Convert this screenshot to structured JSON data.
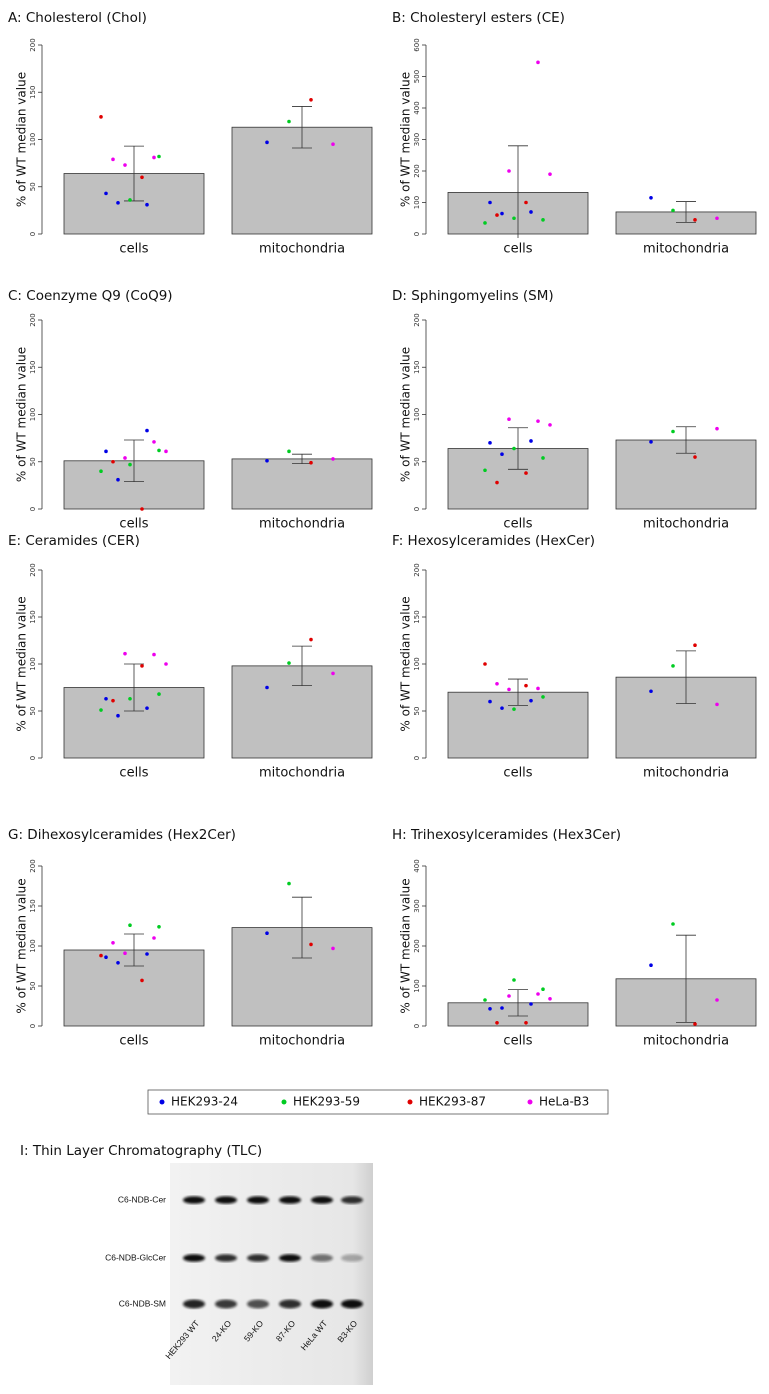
{
  "chart_data": [
    {
      "type": "bar",
      "title": "A: Cholesterol (Chol)",
      "ylabel": "% of WT median value",
      "categories": [
        "cells",
        "mitochondria"
      ],
      "values": [
        64,
        113
      ],
      "errors": [
        29,
        22
      ],
      "ylim": [
        0,
        200
      ],
      "yticks": [
        0,
        50,
        100,
        150,
        200
      ],
      "points": [
        [
          [
            43,
            31,
            33
          ],
          [
            97
          ]
        ],
        [
          [
            82,
            36
          ],
          [
            119
          ]
        ],
        [
          [
            124,
            60
          ],
          [
            142
          ]
        ],
        [
          [
            79,
            81,
            73
          ],
          [
            95
          ]
        ]
      ]
    },
    {
      "type": "bar",
      "title": "B: Cholesteryl esters (CE)",
      "ylabel": "% of WT median value",
      "categories": [
        "cells",
        "mitochondria"
      ],
      "values": [
        132,
        70
      ],
      "errors": [
        148,
        33
      ],
      "ylim": [
        0,
        600
      ],
      "yticks": [
        0,
        100,
        200,
        300,
        400,
        500,
        600
      ],
      "points": [
        [
          [
            100,
            70,
            65
          ],
          [
            115
          ]
        ],
        [
          [
            45,
            50,
            35
          ],
          [
            75
          ]
        ],
        [
          [
            100,
            60
          ],
          [
            45
          ]
        ],
        [
          [
            545,
            200,
            190
          ],
          [
            50
          ]
        ]
      ]
    },
    {
      "type": "bar",
      "title": "C: Coenzyme Q9 (CoQ9)",
      "ylabel": "% of WT median value",
      "categories": [
        "cells",
        "mitochondria"
      ],
      "values": [
        51,
        53
      ],
      "errors": [
        22,
        5
      ],
      "ylim": [
        0,
        200
      ],
      "yticks": [
        0,
        50,
        100,
        150,
        200
      ],
      "points": [
        [
          [
            61,
            83,
            31
          ],
          [
            51
          ]
        ],
        [
          [
            62,
            47,
            40
          ],
          [
            61
          ]
        ],
        [
          [
            0,
            50
          ],
          [
            49
          ]
        ],
        [
          [
            71,
            54,
            61
          ],
          [
            53
          ]
        ]
      ]
    },
    {
      "type": "bar",
      "title": "D: Sphingomyelins (SM)",
      "ylabel": "% of WT median value",
      "categories": [
        "cells",
        "mitochondria"
      ],
      "values": [
        64,
        73
      ],
      "errors": [
        22,
        14
      ],
      "ylim": [
        0,
        200
      ],
      "yticks": [
        0,
        50,
        100,
        150,
        200
      ],
      "points": [
        [
          [
            70,
            72,
            58
          ],
          [
            71
          ]
        ],
        [
          [
            54,
            64,
            41
          ],
          [
            82
          ]
        ],
        [
          [
            38,
            28
          ],
          [
            55
          ]
        ],
        [
          [
            93,
            95,
            89
          ],
          [
            85
          ]
        ]
      ]
    },
    {
      "type": "bar",
      "title": "E: Ceramides (CER)",
      "ylabel": "% of WT median value",
      "categories": [
        "cells",
        "mitochondria"
      ],
      "values": [
        75,
        98
      ],
      "errors": [
        25,
        21
      ],
      "ylim": [
        0,
        200
      ],
      "yticks": [
        0,
        50,
        100,
        150,
        200
      ],
      "points": [
        [
          [
            63,
            53,
            45
          ],
          [
            75
          ]
        ],
        [
          [
            68,
            63,
            51
          ],
          [
            101
          ]
        ],
        [
          [
            98,
            61
          ],
          [
            126
          ]
        ],
        [
          [
            110,
            111,
            100
          ],
          [
            90
          ]
        ]
      ]
    },
    {
      "type": "bar",
      "title": "F: Hexosylceramides (HexCer)",
      "ylabel": "% of WT median value",
      "categories": [
        "cells",
        "mitochondria"
      ],
      "values": [
        70,
        86
      ],
      "errors": [
        14,
        28
      ],
      "ylim": [
        0,
        200
      ],
      "yticks": [
        0,
        50,
        100,
        150,
        200
      ],
      "points": [
        [
          [
            60,
            61,
            53
          ],
          [
            71
          ]
        ],
        [
          [
            65,
            52
          ],
          [
            98
          ]
        ],
        [
          [
            100,
            77
          ],
          [
            120
          ]
        ],
        [
          [
            79,
            74,
            73
          ],
          [
            57
          ]
        ]
      ]
    },
    {
      "type": "bar",
      "title": "G: Dihexosylceramides (Hex2Cer)",
      "ylabel": "% of WT median value",
      "categories": [
        "cells",
        "mitochondria"
      ],
      "values": [
        95,
        123
      ],
      "errors": [
        20,
        38
      ],
      "ylim": [
        0,
        200
      ],
      "yticks": [
        0,
        50,
        100,
        150,
        200
      ],
      "points": [
        [
          [
            86,
            90,
            79
          ],
          [
            116
          ]
        ],
        [
          [
            124,
            126
          ],
          [
            178
          ]
        ],
        [
          [
            88,
            57
          ],
          [
            102
          ]
        ],
        [
          [
            104,
            110,
            91
          ],
          [
            97
          ]
        ]
      ]
    },
    {
      "type": "bar",
      "title": "H: Trihexosylceramides (Hex3Cer)",
      "ylabel": "% of WT median value",
      "categories": [
        "cells",
        "mitochondria"
      ],
      "values": [
        58,
        118
      ],
      "errors": [
        33,
        109
      ],
      "ylim": [
        0,
        400
      ],
      "yticks": [
        0,
        100,
        200,
        300,
        400
      ],
      "points": [
        [
          [
            43,
            55,
            45
          ],
          [
            152
          ]
        ],
        [
          [
            92,
            115,
            65
          ],
          [
            255
          ]
        ],
        [
          [
            8,
            8
          ],
          [
            5
          ]
        ],
        [
          [
            80,
            75,
            68
          ],
          [
            65
          ]
        ]
      ]
    }
  ],
  "legend": {
    "series": [
      {
        "name": "HEK293-24",
        "color": "#0000e6"
      },
      {
        "name": "HEK293-59",
        "color": "#00cc22"
      },
      {
        "name": "HEK293-87",
        "color": "#e00000"
      },
      {
        "name": "HeLa-B3",
        "color": "#ee00ee"
      }
    ]
  },
  "tlc": {
    "title": "I: Thin Layer Chromatography (TLC)",
    "bands": [
      "C6-NDB-Cer",
      "C6-NDB-GlcCer",
      "C6-NDB-SM"
    ],
    "lanes": [
      "HEK293 WT",
      "24-KO",
      "59-KO",
      "87-KO",
      "HeLa WT",
      "B3-KO"
    ]
  }
}
